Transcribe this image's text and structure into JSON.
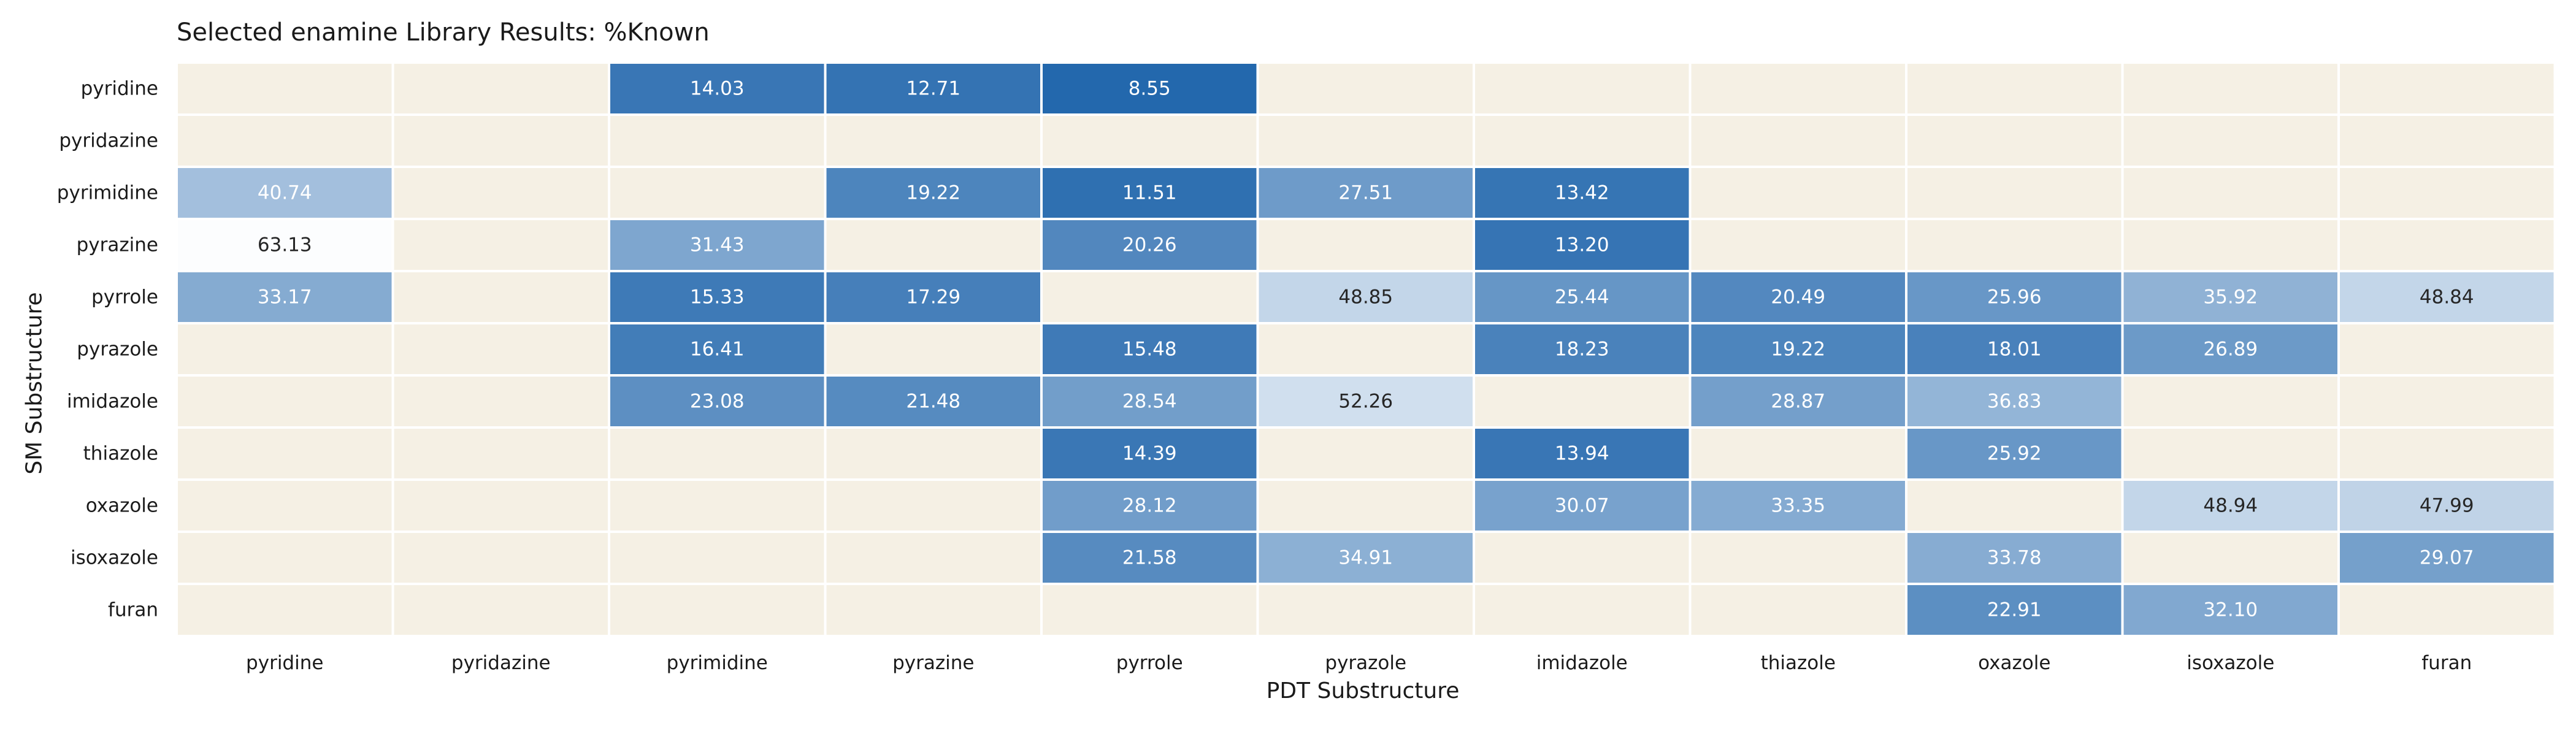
{
  "chart_data": {
    "type": "heatmap",
    "title": "Selected enamine Library Results: %Known",
    "xlabel": "PDT Substructure",
    "ylabel": "SM Substructure",
    "columns": [
      "pyridine",
      "pyridazine",
      "pyrimidine",
      "pyrazine",
      "pyrrole",
      "pyrazole",
      "imidazole",
      "thiazole",
      "oxazole",
      "isoxazole",
      "furan"
    ],
    "rows": [
      "pyridine",
      "pyridazine",
      "pyrimidine",
      "pyrazine",
      "pyrrole",
      "pyrazole",
      "imidazole",
      "thiazole",
      "oxazole",
      "isoxazole",
      "furan"
    ],
    "values": [
      [
        null,
        null,
        14.03,
        12.71,
        8.55,
        null,
        null,
        null,
        null,
        null,
        null
      ],
      [
        null,
        null,
        null,
        null,
        null,
        null,
        null,
        null,
        null,
        null,
        null
      ],
      [
        40.74,
        null,
        null,
        19.22,
        11.51,
        27.51,
        13.42,
        null,
        null,
        null,
        null
      ],
      [
        63.13,
        null,
        31.43,
        null,
        20.26,
        null,
        13.2,
        null,
        null,
        null,
        null
      ],
      [
        33.17,
        null,
        15.33,
        17.29,
        null,
        48.85,
        25.44,
        20.49,
        25.96,
        35.92,
        48.84
      ],
      [
        null,
        null,
        16.41,
        null,
        15.48,
        null,
        18.23,
        19.22,
        18.01,
        26.89,
        null
      ],
      [
        null,
        null,
        23.08,
        21.48,
        28.54,
        52.26,
        null,
        28.87,
        36.83,
        null,
        null
      ],
      [
        null,
        null,
        null,
        null,
        14.39,
        null,
        13.94,
        null,
        25.92,
        null,
        null
      ],
      [
        null,
        null,
        null,
        null,
        28.12,
        null,
        30.07,
        33.35,
        null,
        48.94,
        47.99
      ],
      [
        null,
        null,
        null,
        null,
        21.58,
        34.91,
        null,
        null,
        33.78,
        null,
        29.07
      ],
      [
        null,
        null,
        null,
        null,
        null,
        null,
        null,
        null,
        22.91,
        32.1,
        null
      ]
    ],
    "missing_color": "#f5f0e4",
    "colormap": [
      "#2166ac",
      "#ffffff"
    ],
    "color_range": [
      8,
      64
    ],
    "grid": false,
    "legend": "none"
  }
}
